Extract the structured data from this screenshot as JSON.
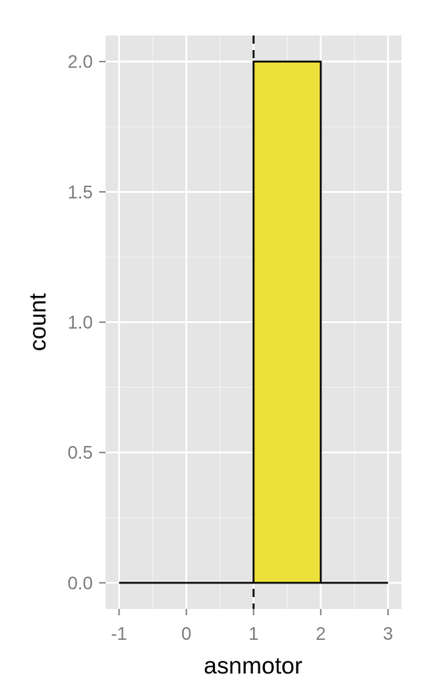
{
  "chart_data": {
    "type": "bar",
    "title": "",
    "xlabel": "asnmotor",
    "ylabel": "count",
    "xlim": [
      -1.2,
      3.2
    ],
    "ylim": [
      -0.1,
      2.1
    ],
    "xticks": [
      -1,
      0,
      1,
      2,
      3
    ],
    "xtick_labels": [
      "-1",
      "0",
      "1",
      "2",
      "3"
    ],
    "yticks": [
      0.0,
      0.5,
      1.0,
      1.5,
      2.0
    ],
    "ytick_labels": [
      "0.0",
      "0.5",
      "1.0",
      "1.5",
      "2.0"
    ],
    "bins": [
      {
        "x_start": -1,
        "x_end": 0,
        "count": 0
      },
      {
        "x_start": 0,
        "x_end": 1,
        "count": 0
      },
      {
        "x_start": 1,
        "x_end": 2,
        "count": 2
      },
      {
        "x_start": 2,
        "x_end": 3,
        "count": 0
      }
    ],
    "vline": {
      "x": 1,
      "style": "dashed"
    },
    "grid": true,
    "panel_color": "#e5e5e5",
    "bar_fill": "#ece03a",
    "bar_stroke": "#000000"
  }
}
